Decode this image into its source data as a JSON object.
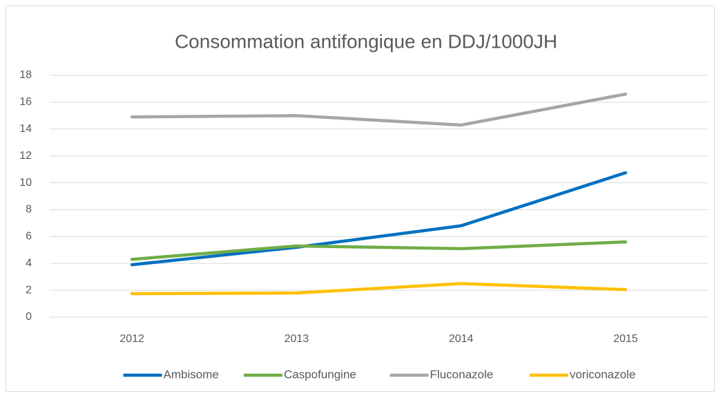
{
  "chart_data": {
    "type": "line",
    "title": "Consommation antifongique en DDJ/1000JH",
    "categories": [
      "2012",
      "2013",
      "2014",
      "2015"
    ],
    "series": [
      {
        "name": "Ambisome",
        "color": "#0070c0",
        "values": [
          3.9,
          5.2,
          6.8,
          10.75
        ]
      },
      {
        "name": "Caspofungine",
        "color": "#70ad47",
        "values": [
          4.3,
          5.3,
          5.1,
          5.6
        ]
      },
      {
        "name": "Fluconazole",
        "color": "#a5a5a5",
        "values": [
          14.9,
          15.0,
          14.3,
          16.6
        ]
      },
      {
        "name": "voriconazole",
        "color": "#ffc000",
        "values": [
          1.75,
          1.8,
          2.5,
          2.05
        ]
      }
    ],
    "ylim": [
      0,
      18
    ],
    "yticks": [
      0,
      2,
      4,
      6,
      8,
      10,
      12,
      14,
      16,
      18
    ],
    "grid": true,
    "legend": "bottom"
  }
}
